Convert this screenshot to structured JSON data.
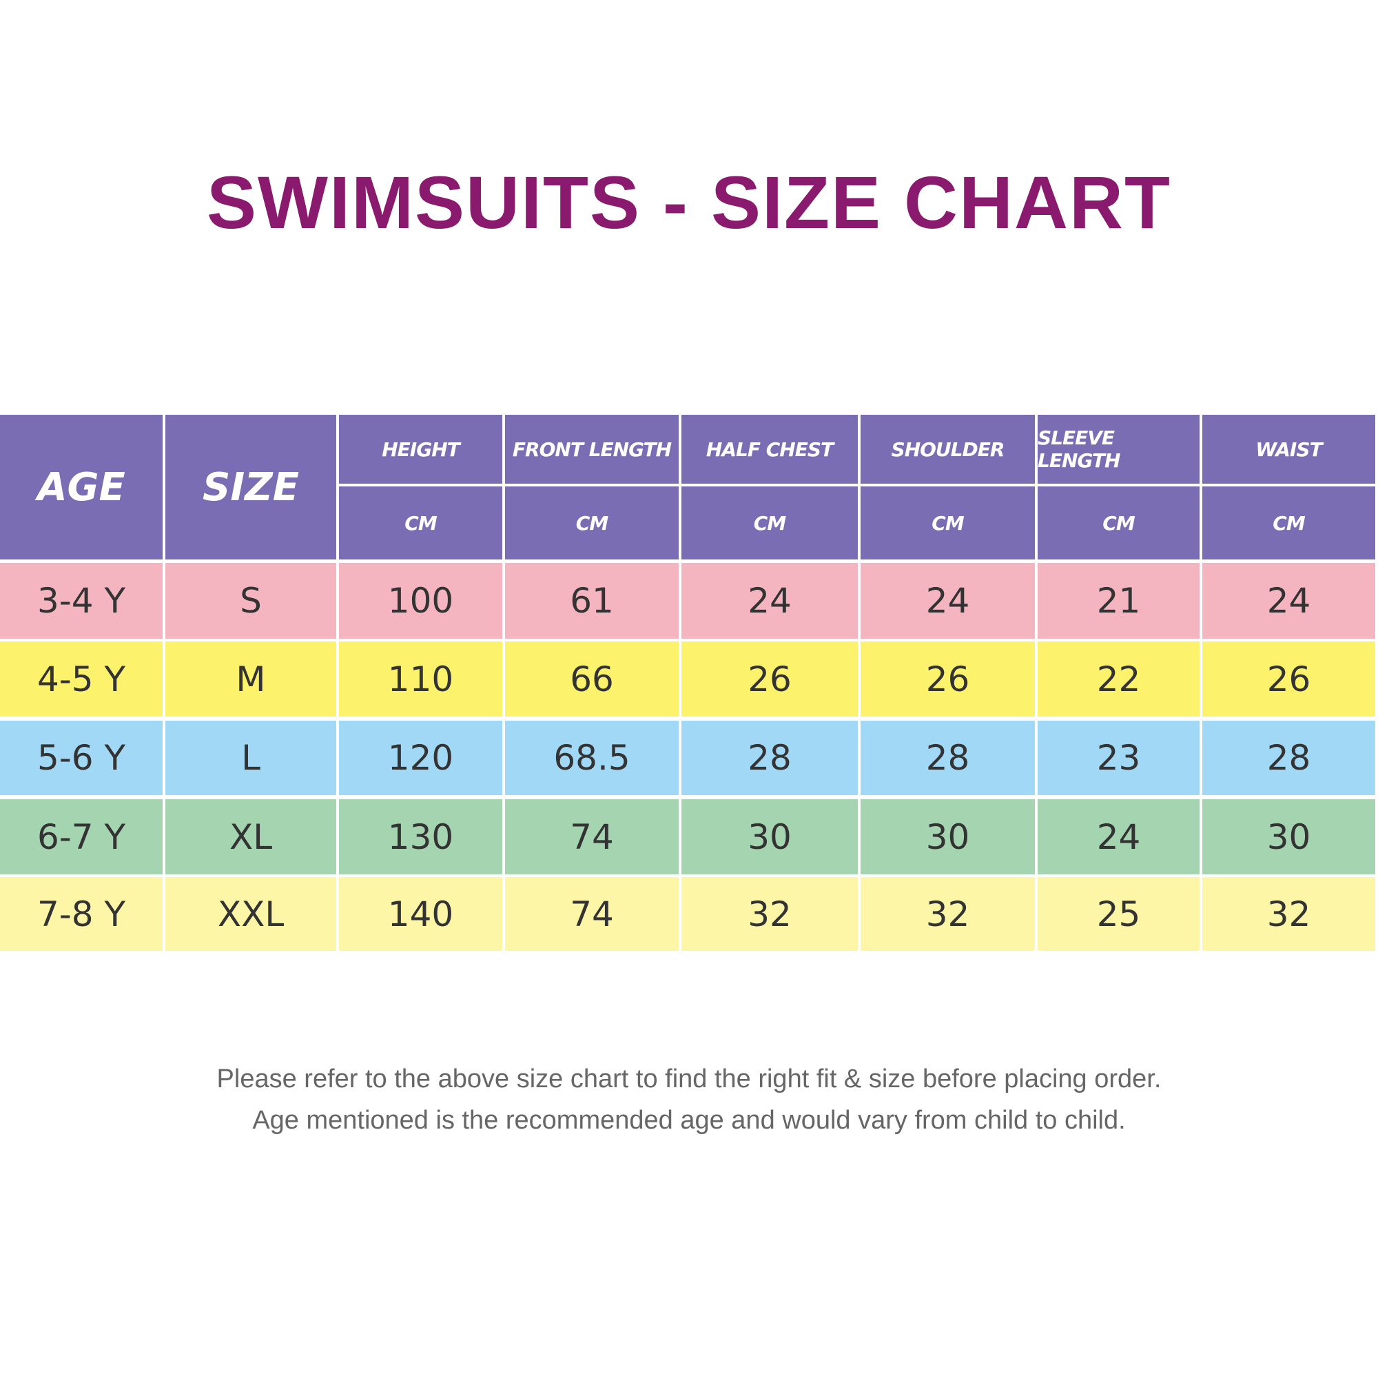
{
  "title": "SWIMSUITS - SIZE CHART",
  "table": {
    "headers": [
      "AGE",
      "SIZE",
      "HEIGHT",
      "FRONT LENGTH",
      "HALF CHEST",
      "SHOULDER",
      "SLEEVE LENGTH",
      "WAIST"
    ],
    "units": [
      "CM",
      "CM",
      "CM",
      "CM",
      "CM",
      "CM"
    ],
    "rows": [
      [
        "3-4 Y",
        "S",
        100,
        61,
        24,
        24,
        21,
        24
      ],
      [
        "4-5 Y",
        "M",
        110,
        66,
        26,
        26,
        22,
        26
      ],
      [
        "5-6 Y",
        "L",
        120,
        68.5,
        28,
        28,
        23,
        28
      ],
      [
        "6-7 Y",
        "XL",
        130,
        74,
        30,
        30,
        24,
        30
      ],
      [
        "7-8 Y",
        "XXL",
        140,
        74,
        32,
        32,
        25,
        32
      ]
    ]
  },
  "footnote": [
    "Please refer to the above size chart to find the right fit & size before placing order.",
    "Age mentioned is the recommended age and would vary from child to child."
  ]
}
